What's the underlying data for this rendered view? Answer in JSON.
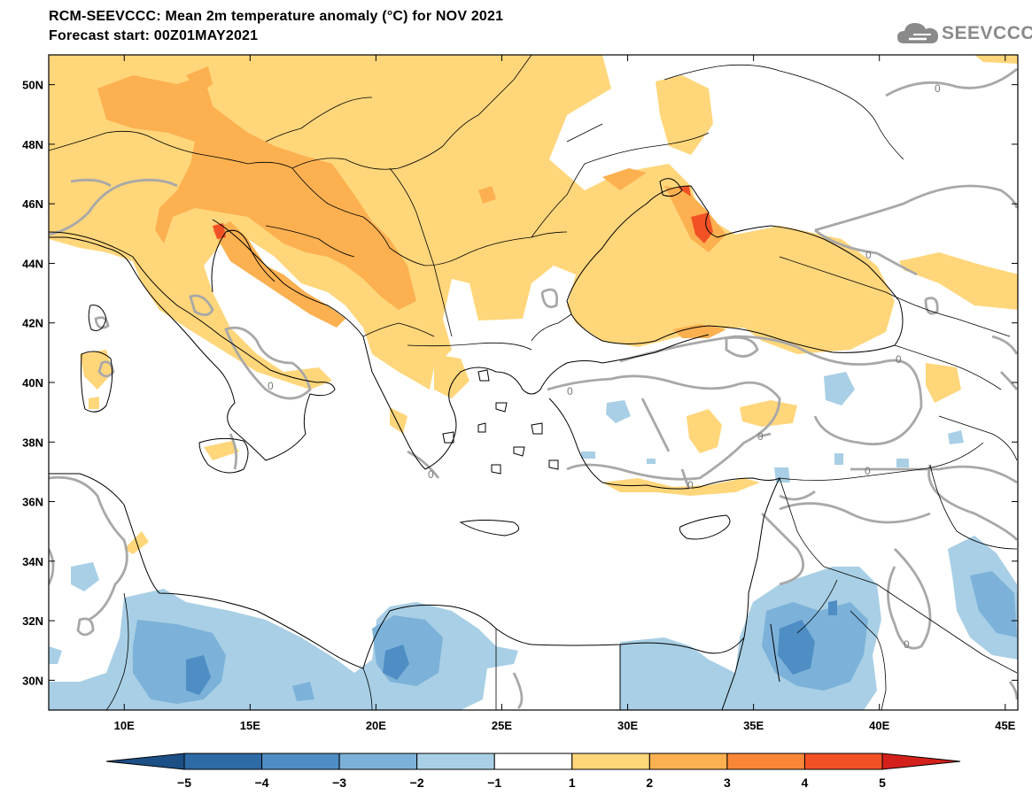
{
  "header": {
    "title": "RCM-SEEVCCC: Mean 2m temperature anomaly (°C) for NOV 2021",
    "subtitle": "Forecast start: 00Z01MAY2021",
    "logo_text": "SEEVCCC"
  },
  "map": {
    "projection": "lat-lon",
    "lon_range": [
      7,
      45.5
    ],
    "lat_range": [
      29,
      51
    ],
    "lon_ticks": [
      "10E",
      "15E",
      "20E",
      "25E",
      "30E",
      "35E",
      "40E",
      "45E"
    ],
    "lat_ticks": [
      "50N",
      "48N",
      "46N",
      "44N",
      "42N",
      "40N",
      "38N",
      "36N",
      "34N",
      "32N",
      "30N"
    ],
    "contour_label": "0"
  },
  "colorbar": {
    "labels": [
      "−5",
      "−4",
      "−3",
      "−2",
      "−1",
      "1",
      "2",
      "3",
      "4",
      "5"
    ],
    "colors": [
      "#1b4f86",
      "#2e6aa6",
      "#4f8ec4",
      "#7cb2d9",
      "#a8cfe5",
      "#ffffff",
      "#ffd67a",
      "#fcb050",
      "#fa8638",
      "#f25125",
      "#d4201b"
    ]
  }
}
